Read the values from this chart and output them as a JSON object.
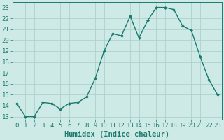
{
  "x": [
    0,
    1,
    2,
    3,
    4,
    5,
    6,
    7,
    8,
    9,
    10,
    11,
    12,
    13,
    14,
    15,
    16,
    17,
    18,
    19,
    20,
    21,
    22,
    23
  ],
  "y": [
    14.2,
    13.0,
    13.0,
    14.3,
    14.2,
    13.7,
    14.2,
    14.3,
    14.8,
    16.5,
    19.0,
    20.6,
    20.4,
    22.2,
    20.2,
    21.8,
    23.0,
    23.0,
    22.8,
    21.3,
    20.9,
    18.5,
    16.4,
    15.0
  ],
  "line_color": "#1a7a6e",
  "marker": "D",
  "marker_size": 2,
  "bg_color": "#ceeae6",
  "grid_color": "#b0d0cc",
  "xlabel": "Humidex (Indice chaleur)",
  "ylim": [
    12.7,
    23.5
  ],
  "xlim": [
    -0.5,
    23.5
  ],
  "yticks": [
    13,
    14,
    15,
    16,
    17,
    18,
    19,
    20,
    21,
    22,
    23
  ],
  "xticks": [
    0,
    1,
    2,
    3,
    4,
    5,
    6,
    7,
    8,
    9,
    10,
    11,
    12,
    13,
    14,
    15,
    16,
    17,
    18,
    19,
    20,
    21,
    22,
    23
  ],
  "tick_color": "#1a7a6e",
  "label_color": "#1a7a6e",
  "fontsize_axis": 6.5,
  "fontsize_label": 7.5
}
